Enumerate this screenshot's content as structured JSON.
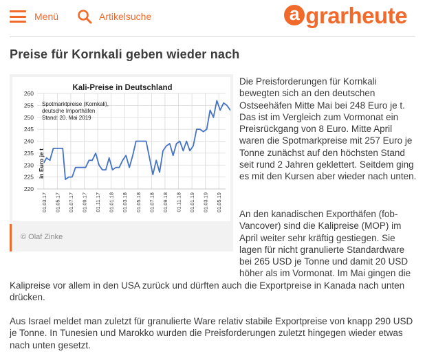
{
  "header": {
    "menu_label": "Menü",
    "search_label": "Artikelsuche",
    "logo_a": "a",
    "logo_rest": "grarheute",
    "accent": "#f16a2b"
  },
  "article": {
    "title": "Preise für Kornkali geben wieder nach",
    "paragraphs": [
      "Die Preisforderungen für Kornkali bewegten sich an den deutschen Ostseehäfen Mitte Mai bei 248 Euro je t. Das ist im Vergleich zum Vormonat ein Preisrückgang von 8 Euro. Mitte April waren die Spotmarkpreise mit 257 Euro je Tonne zunächst auf den höchsten Stand seit rund 2 Jahren geklettert. Seitdem ging es mit den Kursen aber wieder nach unten.",
      "An den kanadischen Exporthäfen (fob-Vancover) sind die Kalipreise (MOP) im April weiter sehr kräftig gestiegen. Sie lagen für nicht granulierte Standardware bei 265 USD je Tonne und damit 20 USD höher als im Vormonat. Im Mai gingen die",
      "Kalipreise vor allem in den USA zurück und dürften auch die Exportpreise in Kanada nach unten drücken.",
      "Aus Israel meldet man zuletzt für granulierte Ware relativ stabile Exportpreise von knapp 290 USD je Tonne. In Tunesien und Marokko wurden die Preisforderungen zuletzt hingegen wieder etwas nach unten gesetzt."
    ]
  },
  "figure": {
    "credit": "© Olaf Zinke"
  },
  "chart_data": {
    "type": "line",
    "title": "Kali-Preise in Deutschland",
    "annotation": [
      "Spotmarktpreise (Kornkali),",
      "deutsche Importhäfen",
      "Stand: 20. Mai 2019"
    ],
    "ylabel": "in Euro je t",
    "ylim": [
      220,
      260
    ],
    "yticks": [
      220,
      225,
      230,
      235,
      240,
      245,
      250,
      255,
      260
    ],
    "xticks": [
      "01.03.17",
      "01.05.17",
      "01.07.17",
      "01.09.17",
      "01.11.17",
      "01.01.18",
      "01.03.18",
      "01.05.18",
      "01.07.18",
      "01.09.18",
      "01.11.18",
      "01.01.19",
      "01.03.19",
      "01.05.19"
    ],
    "grid": true,
    "line_color": "#4472c4",
    "series": [
      {
        "x": [
          0,
          0.2,
          0.45,
          0.7,
          0.9,
          1.15,
          1.4,
          1.6,
          1.85,
          2.1,
          2.35,
          2.6,
          2.85,
          3.1,
          3.35,
          3.6,
          3.85,
          4.1,
          4.35,
          4.6,
          4.85,
          5.1,
          5.35,
          5.6,
          5.85,
          6.1,
          6.35,
          6.6,
          6.85,
          7.1,
          7.35,
          7.6,
          7.85,
          8.1,
          8.35,
          8.6,
          8.85,
          9.1,
          9.35,
          9.6,
          9.85,
          10.1,
          10.35,
          10.6,
          10.85,
          11.1,
          11.35,
          11.6,
          11.85,
          12.1,
          12.35,
          12.6,
          12.85,
          13.1,
          13.35,
          13.6,
          13.85,
          14.1,
          14.2
        ],
        "y": [
          231,
          233,
          232,
          237,
          237,
          237,
          237,
          224,
          225,
          225,
          229,
          229,
          229,
          229,
          232,
          232,
          235,
          230,
          228,
          228,
          233,
          228,
          229,
          229,
          232,
          234,
          229,
          234,
          240,
          240,
          240,
          240,
          233,
          226,
          232,
          227,
          236,
          238,
          239,
          234,
          239,
          240,
          236,
          240,
          236,
          238,
          245,
          245,
          244,
          245,
          253,
          250,
          257,
          253,
          256,
          255,
          253,
          253,
          248
        ]
      }
    ]
  }
}
